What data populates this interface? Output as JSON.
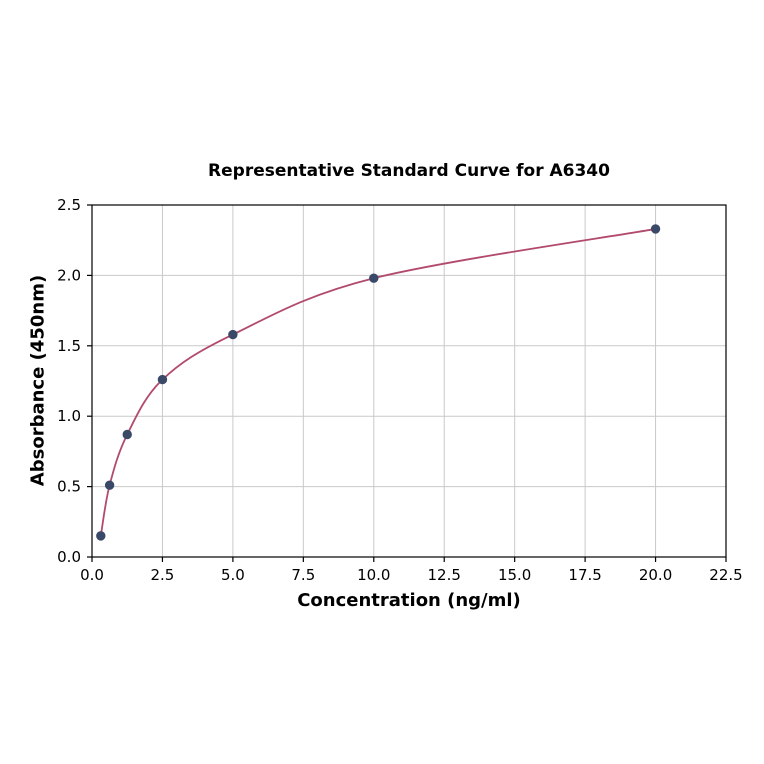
{
  "chart_data": {
    "type": "scatter",
    "title": "Representative Standard Curve for A6340",
    "xlabel": "Concentration (ng/ml)",
    "ylabel": "Absorbance (450nm)",
    "x": [
      0.3125,
      0.625,
      1.25,
      2.5,
      5.0,
      10.0,
      20.0
    ],
    "y": [
      0.15,
      0.51,
      0.87,
      1.26,
      1.58,
      1.98,
      2.33
    ],
    "xlim": [
      0,
      22.5
    ],
    "ylim": [
      0,
      2.5
    ],
    "xticks": [
      0.0,
      2.5,
      5.0,
      7.5,
      10.0,
      12.5,
      15.0,
      17.5,
      20.0,
      22.5
    ],
    "yticks": [
      0.0,
      0.5,
      1.0,
      1.5,
      2.0,
      2.5
    ],
    "grid": true,
    "legend": "none",
    "line_color": "#b24a6b",
    "marker_color": "#3b4968",
    "grid_color": "#c9c9c9",
    "axis_color": "#000000"
  }
}
